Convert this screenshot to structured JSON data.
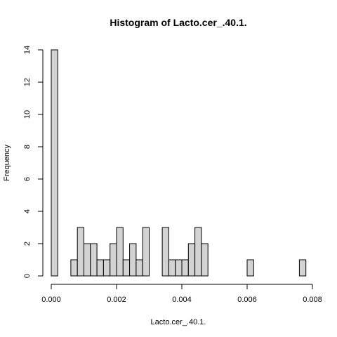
{
  "chart_data": {
    "type": "bar",
    "title": "Histogram of Lacto.cer_.40.1.",
    "xlabel": "Lacto.cer_.40.1.",
    "ylabel": "Frequency",
    "bin_width": 0.0002,
    "bin_start": 0.0,
    "xlim": [
      0.0,
      0.008
    ],
    "ylim": [
      0,
      14
    ],
    "x_ticks": [
      0.0,
      0.002,
      0.004,
      0.006,
      0.008
    ],
    "x_tick_labels": [
      "0.000",
      "0.002",
      "0.004",
      "0.006",
      "0.008"
    ],
    "y_ticks": [
      0,
      2,
      4,
      6,
      8,
      10,
      12,
      14
    ],
    "y_tick_labels": [
      "0",
      "2",
      "4",
      "6",
      "8",
      "10",
      "12",
      "14"
    ],
    "values": [
      14,
      0,
      0,
      1,
      3,
      2,
      2,
      1,
      1,
      2,
      3,
      1,
      2,
      1,
      3,
      0,
      0,
      3,
      1,
      1,
      1,
      2,
      3,
      2,
      0,
      0,
      0,
      0,
      0,
      0,
      1,
      0,
      0,
      0,
      0,
      0,
      0,
      0,
      1
    ],
    "grid": false
  }
}
